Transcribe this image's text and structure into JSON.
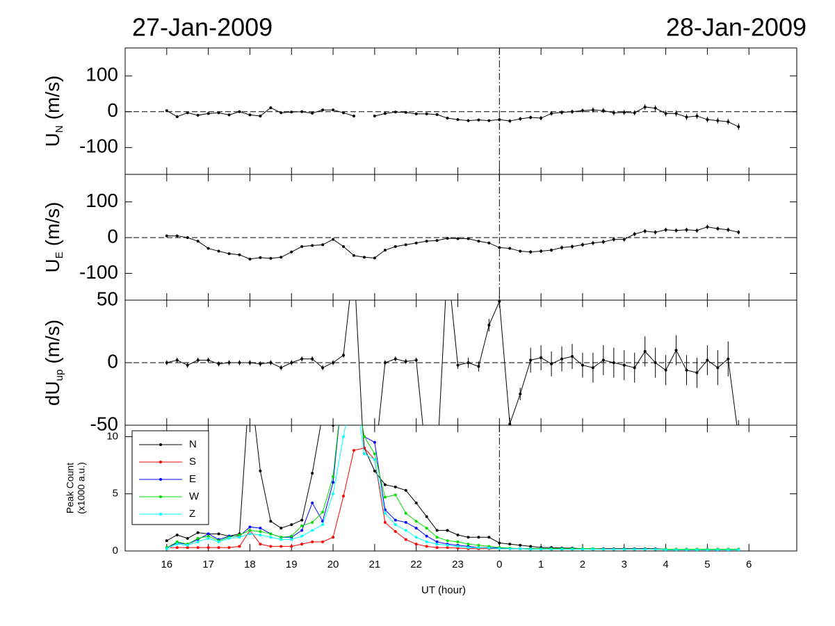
{
  "header": {
    "left_date": "27-Jan-2009",
    "right_date": "28-Jan-2009"
  },
  "chart_data": [
    {
      "type": "line",
      "y_label": {
        "text": "U",
        "subscript": "N",
        "unit": "(m/s)"
      },
      "xlim": [
        15,
        31.15
      ],
      "ylim": [
        -175,
        178
      ],
      "yticks": [
        -100,
        0,
        100
      ],
      "zero_line": true,
      "midnight_line": true,
      "x": [
        16,
        16.25,
        16.5,
        16.75,
        17,
        17.25,
        17.5,
        17.75,
        18,
        18.25,
        18.5,
        18.75,
        19,
        19.25,
        19.5,
        19.75,
        20,
        20.25,
        20.5,
        20.75,
        21,
        21.25,
        21.5,
        21.75,
        22,
        22.25,
        22.5,
        22.75,
        23,
        23.25,
        23.5,
        23.75,
        24,
        24.25,
        24.5,
        24.75,
        25,
        25.25,
        25.5,
        25.75,
        26,
        26.25,
        26.5,
        26.75,
        27,
        27.25,
        27.5,
        27.75,
        28,
        28.25,
        28.5,
        28.75,
        29,
        29.25,
        29.5,
        29.75
      ],
      "series": [
        {
          "color": "#000000",
          "values": [
            3,
            -14,
            -3,
            -10,
            -5,
            -3,
            -9,
            0,
            -9,
            -12,
            11,
            -3,
            -1,
            0,
            -4,
            5,
            5,
            -3,
            -12,
            null,
            -12,
            -5,
            -1,
            -2,
            -6,
            -6,
            -8,
            -18,
            -22,
            -25,
            -23,
            -25,
            -22,
            -26,
            -20,
            -16,
            -18,
            -5,
            -2,
            0,
            3,
            5,
            3,
            -3,
            -2,
            -3,
            13,
            10,
            -5,
            -5,
            -15,
            -12,
            -22,
            -25,
            -28,
            -42
          ],
          "errors": [
            3,
            3,
            3,
            3,
            3,
            3,
            3,
            3,
            3,
            3,
            3,
            3,
            3,
            3,
            3,
            3,
            3,
            3,
            3,
            null,
            3,
            3,
            3,
            3,
            4,
            4,
            4,
            4,
            4,
            4,
            4,
            4,
            5,
            5,
            5,
            5,
            6,
            6,
            6,
            6,
            6,
            7,
            7,
            7,
            7,
            7,
            8,
            8,
            8,
            8,
            8,
            8,
            8,
            8,
            8,
            9
          ]
        }
      ]
    },
    {
      "type": "line",
      "y_label": {
        "text": "U",
        "subscript": "E",
        "unit": "(m/s)"
      },
      "xlim": [
        15,
        31.15
      ],
      "ylim": [
        -175,
        177
      ],
      "yticks": [
        -100,
        0,
        100
      ],
      "zero_line": true,
      "midnight_line": true,
      "x": [
        16,
        16.25,
        16.5,
        16.75,
        17,
        17.25,
        17.5,
        17.75,
        18,
        18.25,
        18.5,
        18.75,
        19,
        19.25,
        19.5,
        19.75,
        20,
        20.25,
        20.5,
        20.75,
        21,
        21.25,
        21.5,
        21.75,
        22,
        22.25,
        22.5,
        22.75,
        23,
        23.25,
        23.5,
        23.75,
        24,
        24.25,
        24.5,
        24.75,
        25,
        25.25,
        25.5,
        25.75,
        26,
        26.25,
        26.5,
        26.75,
        27,
        27.25,
        27.5,
        27.75,
        28,
        28.25,
        28.5,
        28.75,
        29,
        29.25,
        29.5,
        29.75
      ],
      "series": [
        {
          "color": "#000000",
          "values": [
            5,
            5,
            0,
            -10,
            -30,
            -38,
            -45,
            -48,
            -60,
            -56,
            -58,
            -55,
            -40,
            -25,
            -22,
            -20,
            -5,
            -25,
            -50,
            -55,
            -57,
            -35,
            -25,
            -20,
            -15,
            -10,
            -8,
            -2,
            -3,
            -3,
            -10,
            -15,
            -28,
            -30,
            -38,
            -40,
            -38,
            -35,
            -28,
            -25,
            -20,
            -15,
            -12,
            -5,
            -5,
            10,
            18,
            15,
            22,
            20,
            22,
            20,
            30,
            25,
            22,
            15
          ],
          "errors": [
            3,
            3,
            3,
            3,
            3,
            3,
            3,
            3,
            3,
            3,
            3,
            3,
            3,
            3,
            3,
            3,
            3,
            3,
            3,
            3,
            3,
            3,
            3,
            3,
            3,
            3,
            3,
            3,
            3,
            3,
            3,
            3,
            4,
            4,
            4,
            5,
            5,
            5,
            6,
            6,
            6,
            6,
            6,
            6,
            6,
            6,
            6,
            6,
            6,
            6,
            6,
            6,
            6,
            6,
            6,
            6
          ]
        }
      ]
    },
    {
      "type": "line",
      "y_label": {
        "text": "dU",
        "subscript": "up",
        "unit": "(m/s)"
      },
      "xlim": [
        15,
        31.15
      ],
      "ylim": [
        -50,
        50
      ],
      "yticks": [
        -50,
        0,
        50
      ],
      "zero_line": true,
      "midnight_line": false,
      "x": [
        16,
        16.25,
        16.5,
        16.75,
        17,
        17.25,
        17.5,
        17.75,
        18,
        18.25,
        18.5,
        18.75,
        19,
        19.25,
        19.5,
        19.75,
        20,
        20.25,
        20.5,
        20.75,
        21,
        21.25,
        21.5,
        21.75,
        22,
        22.25,
        22.5,
        22.75,
        23,
        23.25,
        23.5,
        23.75,
        24,
        24.25,
        24.5,
        24.75,
        25,
        25.25,
        25.5,
        25.75,
        26,
        26.25,
        26.5,
        26.75,
        27,
        27.25,
        27.5,
        27.75,
        28,
        28.25,
        28.5,
        28.75,
        29,
        29.25,
        29.5,
        29.75
      ],
      "series": [
        {
          "color": "#000000",
          "values": [
            0,
            2,
            -2,
            2,
            2,
            -1,
            0,
            0,
            0,
            -1,
            0,
            -4,
            0,
            3,
            3,
            -4,
            0,
            6,
            80,
            -80,
            -80,
            0,
            3,
            1,
            2,
            -80,
            -80,
            80,
            -2,
            0,
            -3,
            30,
            49,
            -49,
            -25,
            2,
            4,
            -1,
            3,
            5,
            -2,
            -4,
            2,
            0,
            -2,
            -4,
            9,
            0,
            -6,
            10,
            -6,
            -8,
            2,
            -4,
            3,
            -60
          ],
          "errors": [
            2,
            2,
            2,
            2,
            2,
            2,
            2,
            2,
            2,
            2,
            2,
            2,
            2,
            2,
            2,
            2,
            2,
            2,
            2,
            2,
            2,
            2,
            2,
            2,
            2,
            2,
            2,
            2,
            3,
            4,
            4,
            5,
            5,
            5,
            5,
            10,
            10,
            10,
            10,
            10,
            10,
            12,
            12,
            12,
            12,
            12,
            12,
            12,
            12,
            12,
            12,
            12,
            12,
            14,
            14,
            14
          ]
        }
      ]
    },
    {
      "type": "line",
      "y_label": [
        "Peak Count",
        "(x1000 a.u.)"
      ],
      "x_label": "UT (hour)",
      "xlim": [
        15,
        31.15
      ],
      "ylim": [
        0,
        11
      ],
      "yticks": [
        0,
        5,
        10
      ],
      "midnight_line": true,
      "legend": "upper left",
      "xticks": [
        16,
        17,
        18,
        19,
        20,
        21,
        22,
        23,
        {
          "value": 24,
          "label": "0"
        },
        {
          "value": 25,
          "label": "1"
        },
        {
          "value": 26,
          "label": "2"
        },
        {
          "value": 27,
          "label": "3"
        },
        {
          "value": 28,
          "label": "4"
        },
        {
          "value": 29,
          "label": "5"
        },
        {
          "value": 30,
          "label": "6"
        }
      ],
      "x": [
        16,
        16.25,
        16.5,
        16.75,
        17,
        17.25,
        17.5,
        17.75,
        18,
        18.25,
        18.5,
        18.75,
        19,
        19.25,
        19.5,
        19.75,
        20,
        20.25,
        20.5,
        20.75,
        21,
        21.25,
        21.5,
        21.75,
        22,
        22.25,
        22.5,
        22.75,
        23,
        23.25,
        23.5,
        23.75,
        24,
        24.25,
        24.5,
        24.75,
        25,
        25.25,
        25.5,
        25.75,
        26,
        26.25,
        26.5,
        26.75,
        27,
        27.25,
        27.5,
        27.75,
        28,
        28.25,
        28.5,
        28.75,
        29,
        29.25,
        29.5,
        29.75
      ],
      "series": [
        {
          "name": "N",
          "color": "#000000",
          "values": [
            0.9,
            1.4,
            1.1,
            1.6,
            1.5,
            1.5,
            1.3,
            1.5,
            15,
            7,
            2.6,
            2.0,
            2.3,
            2.7,
            6.8,
            12,
            11,
            20,
            20,
            9,
            7,
            5.8,
            5.6,
            5.3,
            4.2,
            3.0,
            1.8,
            1.8,
            1.4,
            1.2,
            1.2,
            1.2,
            0.7,
            0.6,
            0.5,
            0.4,
            0.3,
            0.3,
            0.25,
            0.25,
            0.2,
            0.2,
            0.2,
            0.2,
            0.2,
            0.2,
            0.2,
            0.2,
            0.15,
            0.15,
            0.15,
            0.15,
            0.15,
            0.15,
            0.15,
            0.15
          ]
        },
        {
          "name": "S",
          "color": "#ff0000",
          "values": [
            0.3,
            0.3,
            0.3,
            0.3,
            0.3,
            0.3,
            0.3,
            0.4,
            1.8,
            0.6,
            0.4,
            0.4,
            0.4,
            0.6,
            0.8,
            0.8,
            1.2,
            4.8,
            8.8,
            9,
            8,
            2.5,
            1.7,
            1.0,
            0.6,
            0.4,
            0.3,
            0.3,
            0.25,
            0.2,
            0.2,
            0.2,
            0.2,
            0.2,
            0.2,
            0.15,
            0.15,
            0.15,
            0.15,
            0.15,
            0.15,
            0.15,
            0.15,
            0.15,
            0.15,
            0.15,
            0.15,
            0.15,
            0.1,
            0.1,
            0.1,
            0.1,
            0.1,
            0.1,
            0.1,
            0.1
          ]
        },
        {
          "name": "E",
          "color": "#0000ff",
          "values": [
            0.3,
            0.7,
            0.6,
            1.0,
            1.5,
            1.0,
            1.3,
            1.3,
            2.1,
            2.0,
            1.5,
            1.2,
            1.2,
            1.8,
            4.2,
            2.6,
            6,
            15,
            15,
            10,
            9.5,
            3.6,
            2.7,
            2.5,
            2.0,
            1.3,
            0.8,
            0.6,
            0.5,
            0.4,
            0.3,
            0.3,
            0.25,
            0.2,
            0.2,
            0.2,
            0.2,
            0.2,
            0.2,
            0.2,
            0.15,
            0.15,
            0.15,
            0.15,
            0.15,
            0.15,
            0.15,
            0.15,
            0.15,
            0.15,
            0.15,
            0.15,
            0.15,
            0.15,
            0.15,
            0.15
          ]
        },
        {
          "name": "W",
          "color": "#00dd00",
          "values": [
            0.3,
            0.8,
            0.6,
            1.1,
            1.3,
            0.9,
            1.2,
            1.4,
            1.8,
            1.7,
            1.5,
            1.2,
            1.3,
            2.2,
            2.5,
            3.4,
            6.5,
            15,
            15,
            10,
            8.5,
            4.7,
            4.9,
            3.3,
            2.6,
            2.0,
            1.2,
            0.9,
            0.8,
            0.6,
            0.5,
            0.4,
            0.3,
            0.25,
            0.2,
            0.2,
            0.2,
            0.2,
            0.2,
            0.2,
            0.2,
            0.2,
            0.15,
            0.15,
            0.15,
            0.15,
            0.15,
            0.15,
            0.15,
            0.15,
            0.15,
            0.15,
            0.15,
            0.15,
            0.15,
            0.15
          ]
        },
        {
          "name": "Z",
          "color": "#00ffff",
          "values": [
            0.2,
            0.6,
            0.5,
            0.8,
            1.1,
            0.8,
            1.1,
            1.2,
            1.5,
            1.4,
            1.2,
            1.0,
            1.0,
            1.3,
            1.8,
            2.3,
            5,
            10,
            15,
            8.5,
            8,
            3.3,
            2.3,
            1.8,
            1.2,
            0.8,
            0.6,
            0.5,
            0.4,
            0.3,
            0.3,
            0.25,
            0.2,
            0.2,
            0.2,
            0.15,
            0.15,
            0.15,
            0.15,
            0.15,
            0.15,
            0.15,
            0.15,
            0.15,
            0.15,
            0.15,
            0.15,
            0.15,
            0.1,
            0.1,
            0.1,
            0.1,
            0.1,
            0.1,
            0.1,
            0.1
          ]
        }
      ]
    }
  ]
}
